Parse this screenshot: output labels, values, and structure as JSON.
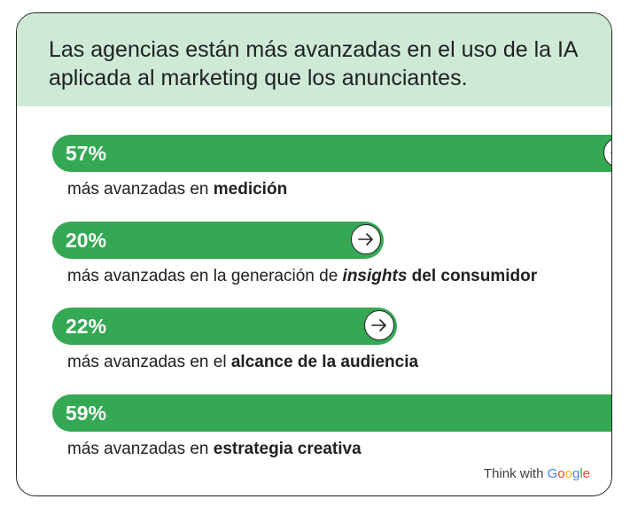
{
  "title": "Las agencias están más avanzadas en el uso de la IA aplicada al marketing que los anunciantes.",
  "colors": {
    "bar": "#34a853",
    "header_bg": "#ceead6",
    "text": "#202124"
  },
  "chart_data": {
    "type": "bar",
    "orientation": "horizontal",
    "unit": "%",
    "items": [
      {
        "value": 57,
        "value_label": "57%",
        "label_parts": [
          {
            "text": "más avanzadas en ",
            "style": "normal"
          },
          {
            "text": "medición",
            "style": "bold"
          }
        ]
      },
      {
        "value": 20,
        "value_label": "20%",
        "label_parts": [
          {
            "text": "más avanzadas en la generación de ",
            "style": "normal"
          },
          {
            "text": "insights",
            "style": "bold-italic"
          },
          {
            "text": " del consumidor",
            "style": "bold"
          }
        ]
      },
      {
        "value": 22,
        "value_label": "22%",
        "label_parts": [
          {
            "text": "más avanzadas en el ",
            "style": "normal"
          },
          {
            "text": "alcance de la audiencia",
            "style": "bold"
          }
        ]
      },
      {
        "value": 59,
        "value_label": "59%",
        "label_parts": [
          {
            "text": "más avanzadas en ",
            "style": "normal"
          },
          {
            "text": "estrategia creativa",
            "style": "bold"
          }
        ]
      }
    ]
  },
  "branding": {
    "think_with": "Think with ",
    "google_letters": [
      "G",
      "o",
      "o",
      "g",
      "l",
      "e"
    ]
  }
}
